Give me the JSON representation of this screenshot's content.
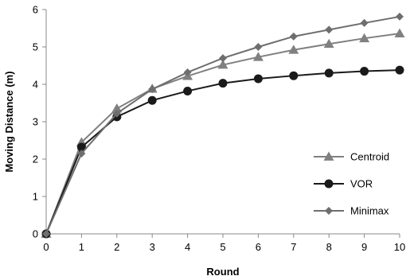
{
  "chart_data": {
    "type": "line",
    "title": "",
    "xlabel": "Round",
    "ylabel": "Moving Distance (m)",
    "x": [
      0,
      1,
      2,
      3,
      4,
      5,
      6,
      7,
      8,
      9,
      10
    ],
    "xlim": [
      0,
      10
    ],
    "ylim": [
      0,
      6
    ],
    "xticks": [
      "0",
      "1",
      "2",
      "3",
      "4",
      "5",
      "6",
      "7",
      "8",
      "9",
      "10"
    ],
    "yticks": [
      "0",
      "1",
      "2",
      "3",
      "4",
      "5",
      "6"
    ],
    "grid": false,
    "legend_position": "right",
    "series": [
      {
        "name": "Centroid",
        "marker": "triangle",
        "color": "#808080",
        "values": [
          0,
          2.45,
          3.35,
          3.88,
          4.22,
          4.52,
          4.73,
          4.92,
          5.08,
          5.23,
          5.36
        ]
      },
      {
        "name": "VOR",
        "marker": "circle",
        "color": "#1a1a1a",
        "values": [
          0,
          2.32,
          3.13,
          3.57,
          3.82,
          4.03,
          4.15,
          4.23,
          4.3,
          4.35,
          4.38
        ]
      },
      {
        "name": "Minimax",
        "marker": "diamond",
        "color": "#6e6e6e",
        "values": [
          0,
          2.15,
          3.22,
          3.87,
          4.32,
          4.7,
          5.0,
          5.28,
          5.46,
          5.64,
          5.81
        ]
      }
    ]
  }
}
